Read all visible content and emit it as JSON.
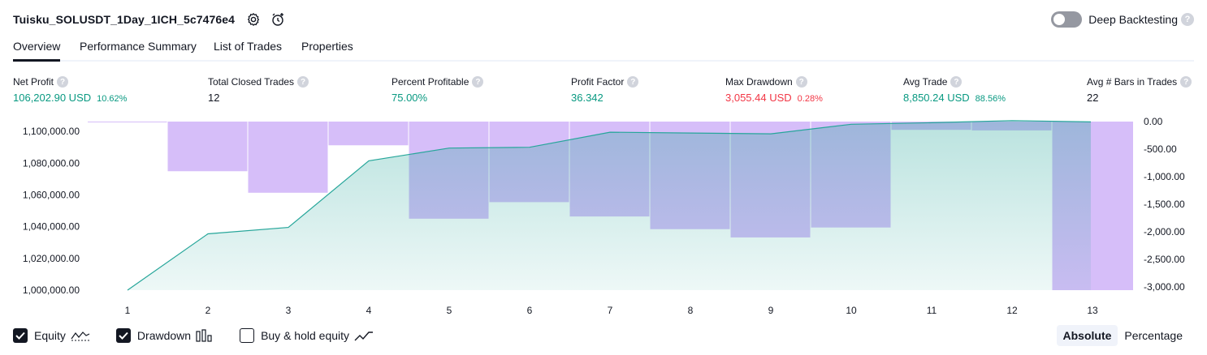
{
  "header": {
    "title": "Tuisku_SOLUSDT_1Day_1ICH_5c7476e4",
    "icons": [
      "settings-icon",
      "add-alert-icon"
    ]
  },
  "deep_backtesting": {
    "label": "Deep Backtesting",
    "enabled": false,
    "help": "?"
  },
  "tabs": [
    {
      "label": "Overview",
      "active": true
    },
    {
      "label": "Performance Summary",
      "active": false
    },
    {
      "label": "List of Trades",
      "active": false
    },
    {
      "label": "Properties",
      "active": false
    }
  ],
  "metrics": {
    "net_profit": {
      "label": "Net Profit",
      "value": "106,202.90 USD",
      "pct": "10.62%",
      "color": "#089981"
    },
    "total_closed_trades": {
      "label": "Total Closed Trades",
      "value": "12"
    },
    "percent_profitable": {
      "label": "Percent Profitable",
      "value": "75.00%",
      "color": "#089981"
    },
    "profit_factor": {
      "label": "Profit Factor",
      "value": "36.342",
      "color": "#089981"
    },
    "max_drawdown": {
      "label": "Max Drawdown",
      "value": "3,055.44 USD",
      "pct": "0.28%",
      "color": "#f23645"
    },
    "avg_trade": {
      "label": "Avg Trade",
      "value": "8,850.24 USD",
      "pct": "88.56%",
      "color": "#089981"
    },
    "avg_bars": {
      "label": "Avg # Bars in Trades",
      "value": "22"
    }
  },
  "chart_data": {
    "type": "area",
    "categories": [
      "1",
      "2",
      "3",
      "4",
      "5",
      "6",
      "7",
      "8",
      "9",
      "10",
      "11",
      "12",
      "13"
    ],
    "series": [
      {
        "name": "Equity",
        "type": "area",
        "axis": "left",
        "color": "#26a69a",
        "x": [
          1,
          2,
          3,
          4,
          5,
          6,
          7,
          8,
          9,
          10,
          11,
          12,
          12.98
        ],
        "values": [
          1000000,
          1035500,
          1039500,
          1081500,
          1089500,
          1090000,
          1099500,
          1099000,
          1098500,
          1104500,
          1105500,
          1106800,
          1106000
        ]
      },
      {
        "name": "Drawdown",
        "type": "bar",
        "axis": "right",
        "color": "#c4a3f7",
        "values": [
          -5,
          -900,
          -1290,
          -430,
          -1760,
          -1460,
          -1720,
          -1950,
          -2100,
          -1920,
          -150,
          -160,
          -3055.44
        ]
      }
    ],
    "left_axis": {
      "ylim": [
        1000000,
        1106202.9
      ],
      "ticks": [
        "1,000,000.00",
        "1,020,000.00",
        "1,040,000.00",
        "1,060,000.00",
        "1,080,000.00",
        "1,100,000.00"
      ],
      "tick_values": [
        1000000,
        1020000,
        1040000,
        1060000,
        1080000,
        1100000
      ]
    },
    "right_axis": {
      "ylim": [
        -3055.44,
        0
      ],
      "ticks": [
        "0.00",
        "-500.00",
        "-1,000.00",
        "-1,500.00",
        "-2,000.00",
        "-2,500.00",
        "-3,000.00"
      ],
      "tick_values": [
        0,
        -500,
        -1000,
        -1500,
        -2000,
        -2500,
        -3000
      ]
    },
    "grid": false
  },
  "legend": [
    {
      "label": "Equity",
      "checked": true,
      "icon": "equity-line-icon"
    },
    {
      "label": "Drawdown",
      "checked": true,
      "icon": "drawdown-bars-icon"
    },
    {
      "label": "Buy & hold equity",
      "checked": false,
      "icon": "buy-hold-line-icon"
    }
  ],
  "mode": {
    "absolute": "Absolute",
    "percentage": "Percentage",
    "selected": "Absolute"
  }
}
